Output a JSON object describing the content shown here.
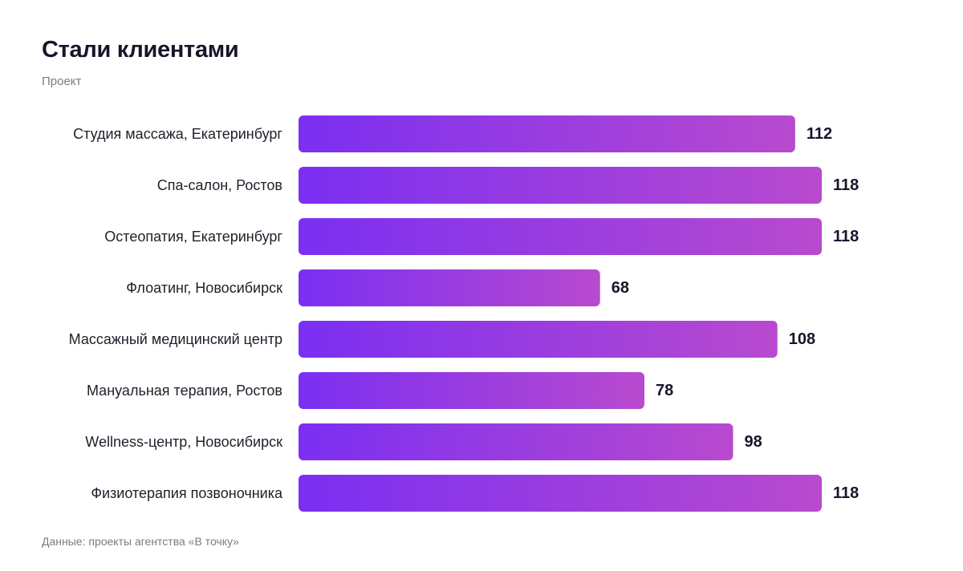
{
  "chart_data": {
    "type": "bar",
    "orientation": "horizontal",
    "title": "Стали клиентами",
    "subtitle": "Проект",
    "source": "Данные: проекты агентства «В точку»",
    "categories": [
      "Студия массажа, Екатеринбург",
      "Спа-салон, Ростов",
      "Остеопатия, Екатеринбург",
      "Флоатинг, Новосибирск",
      "Массажный медицинский центр",
      "Мануальная терапия, Ростов",
      "Wellness-центр, Новосибирск",
      "Физиотерапия позвоночника"
    ],
    "values": [
      112,
      118,
      118,
      68,
      108,
      78,
      98,
      118
    ],
    "xlim": [
      0,
      118
    ],
    "grid": false,
    "legend": "none",
    "colors": {
      "bar_gradient_start": "#7b2ff2",
      "bar_gradient_end": "#b84ace",
      "text": "#16162a",
      "muted_text": "#7a7a85"
    }
  }
}
